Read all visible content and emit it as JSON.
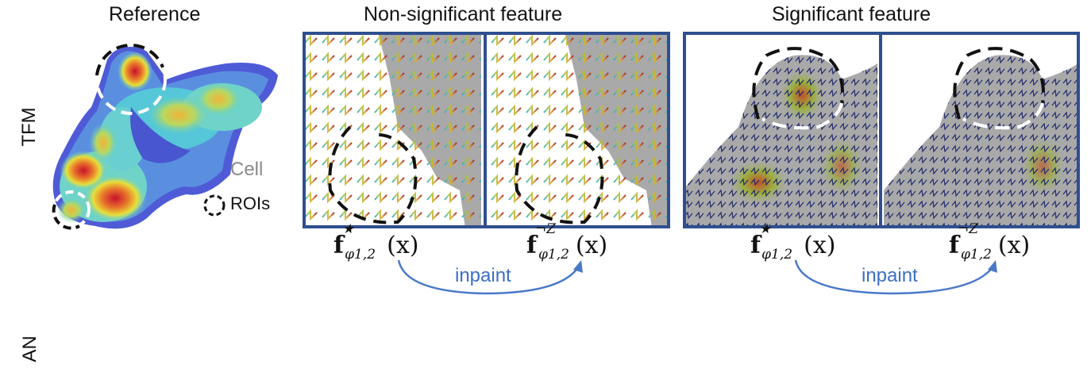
{
  "titles": {
    "reference": "Reference",
    "non_significant": "Non-significant feature",
    "significant": "Significant feature"
  },
  "row_labels": {
    "top": "TFM",
    "bottom": "AN"
  },
  "legend": {
    "cell": "Cell",
    "rois": "ROIs"
  },
  "formulas": {
    "f": "f",
    "sub": "φ1,2",
    "star": "★",
    "negz": "¬Z",
    "arg": "(x)"
  },
  "arrows": {
    "label": "inpaint"
  },
  "colors": {
    "frame": "#2f4f8f",
    "arrow": "#4a78c8",
    "gray_region": "#a9a9a9",
    "dark_arrow": "#1f2a6b"
  }
}
